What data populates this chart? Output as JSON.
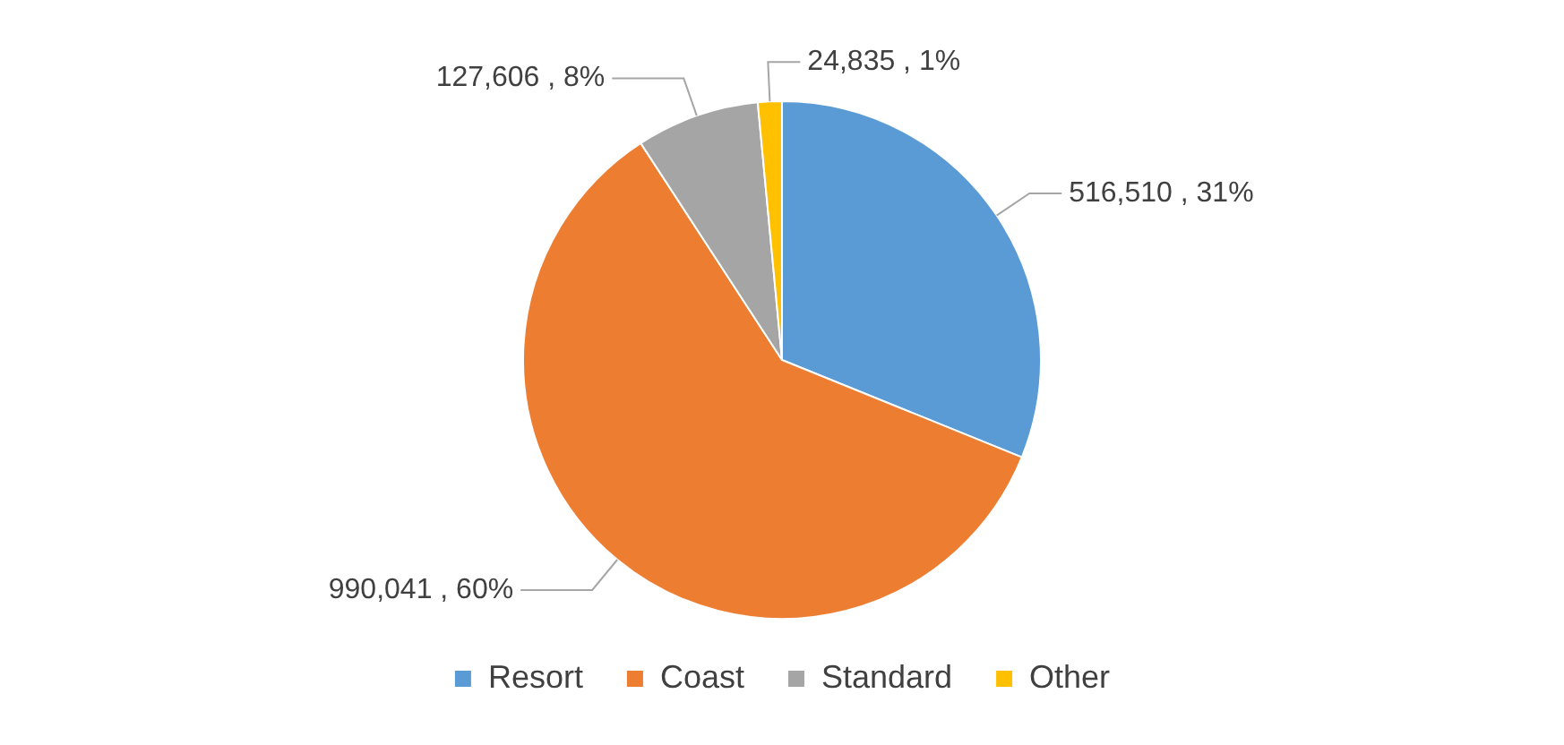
{
  "chart_data": {
    "type": "pie",
    "categories": [
      "Resort",
      "Coast",
      "Standard",
      "Other"
    ],
    "values": [
      516510,
      990041,
      127606,
      24835
    ],
    "colors": [
      "#5b9bd5",
      "#ed7d31",
      "#a5a5a5",
      "#ffc000"
    ],
    "value_labels": [
      "516,510 , 31%",
      "990,041 , 60%",
      "127,606 , 8%",
      "24,835 , 1%"
    ],
    "legend": "bottom"
  }
}
